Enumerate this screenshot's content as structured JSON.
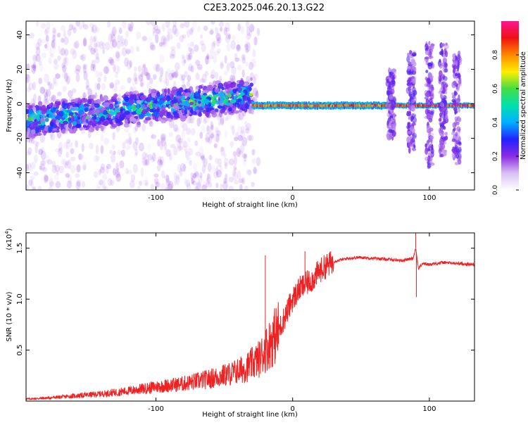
{
  "title": "C2E3.2025.046.20.13.G22",
  "colors": {
    "snr_line": "#ee2222",
    "colormap": [
      "#ffffff",
      "#d8c0f4",
      "#8a2be2",
      "#2222ff",
      "#00b0ff",
      "#00e0b0",
      "#44dd44",
      "#ffee00",
      "#ff8800",
      "#ee1111",
      "#ff1493"
    ]
  },
  "chart_data": [
    {
      "type": "heatmap",
      "xlabel": "Height of straight line (km)",
      "ylabel": "Frequency (Hz)",
      "xlim": [
        -195,
        133
      ],
      "ylim": [
        -50,
        48
      ],
      "xticks": [
        -100,
        0,
        100
      ],
      "yticks": [
        -40,
        -20,
        0,
        20,
        40
      ],
      "colorbar": {
        "label": "Normalized spectral amplitude",
        "range": [
          0,
          1
        ],
        "ticks": [
          "0.0",
          "0.2",
          "0.4",
          "0.6",
          "0.8"
        ],
        "tick_values": [
          0.0,
          0.2,
          0.4,
          0.6,
          0.8
        ]
      },
      "description_bands": [
        {
          "x_from": -195,
          "x_to": -30,
          "freq_center_from": -10,
          "freq_center_to": 5,
          "spread": 12,
          "max_amp": 0.55
        },
        {
          "x_from": -30,
          "x_to": 72,
          "freq_center": -1,
          "spread": 2,
          "max_amp": 0.9
        },
        {
          "x_from": 72,
          "x_to": 133,
          "freq_center": -1,
          "spread": 1.5,
          "max_amp": 1.0
        }
      ],
      "bursts": [
        {
          "x": 72,
          "ylim": [
            -20,
            20
          ]
        },
        {
          "x": 87,
          "ylim": [
            -28,
            30
          ]
        },
        {
          "x": 100,
          "ylim": [
            -38,
            36
          ]
        },
        {
          "x": 110,
          "ylim": [
            -30,
            35
          ]
        },
        {
          "x": 120,
          "ylim": [
            -36,
            30
          ]
        }
      ]
    },
    {
      "type": "line",
      "xlabel": "Height of straight line (km)",
      "ylabel": "SNR (10 * v/v)",
      "y_multiplier": "(x10",
      "y_multiplier_exp": "4",
      "y_multiplier_close": ")",
      "xlim": [
        -195,
        133
      ],
      "ylim": [
        0,
        1.65
      ],
      "xticks": [
        -100,
        0,
        100
      ],
      "yticks": [
        "0.5",
        "1.0",
        "1.5"
      ],
      "ytick_values": [
        0.5,
        1.0,
        1.5
      ],
      "series": [
        {
          "x": [
            -195,
            -180,
            -160,
            -140,
            -120,
            -100,
            -80,
            -60,
            -45,
            -35,
            -28,
            -24,
            -20,
            -15,
            -10,
            -5,
            0,
            5,
            10,
            15,
            20,
            25,
            30,
            40,
            50,
            60,
            70,
            80,
            88,
            90,
            92,
            95,
            100,
            110,
            120,
            133
          ],
          "values": [
            0.02,
            0.03,
            0.05,
            0.07,
            0.1,
            0.14,
            0.17,
            0.22,
            0.27,
            0.32,
            0.38,
            0.42,
            0.5,
            0.6,
            0.7,
            0.85,
            1.0,
            1.1,
            1.15,
            1.2,
            1.28,
            1.33,
            1.37,
            1.4,
            1.41,
            1.4,
            1.39,
            1.38,
            1.4,
            1.5,
            1.3,
            1.35,
            1.34,
            1.36,
            1.35,
            1.34
          ]
        }
      ],
      "spikes": [
        {
          "x": -20,
          "y": 1.43
        },
        {
          "x": 9,
          "y": 1.47
        },
        {
          "x": 90,
          "y": 1.65
        },
        {
          "x": 90.5,
          "y": 1.02
        }
      ]
    }
  ]
}
